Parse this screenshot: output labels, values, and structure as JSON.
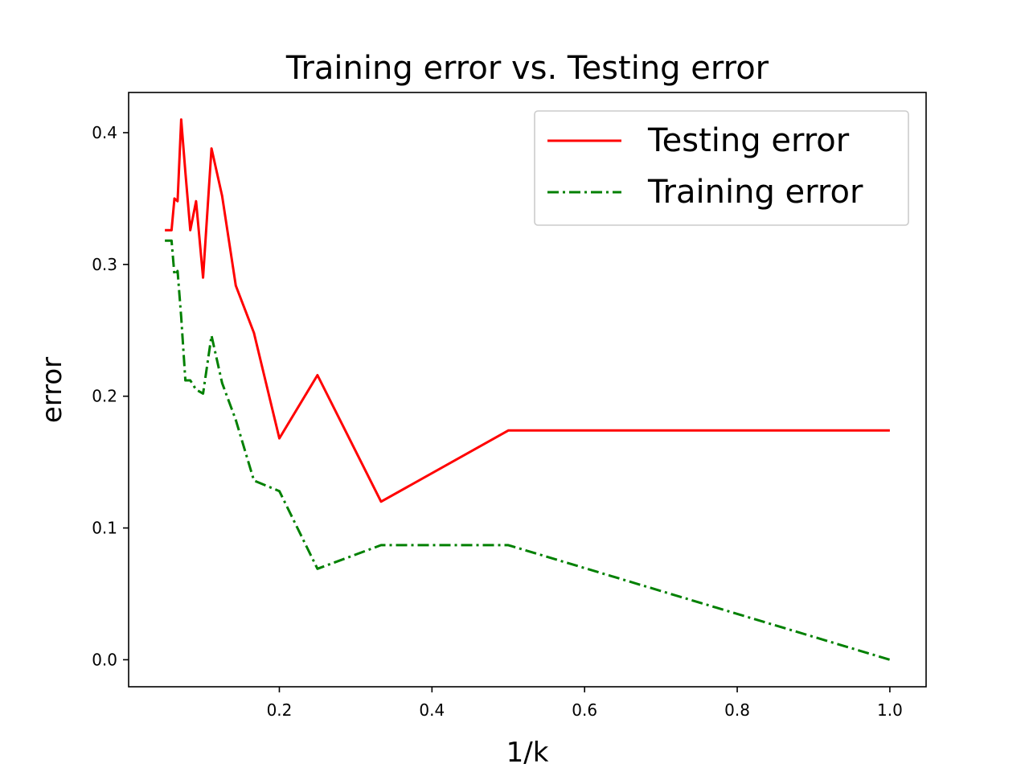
{
  "chart_data": {
    "type": "line",
    "title": "Training error vs. Testing error",
    "xlabel": "1/k",
    "ylabel": "error",
    "xlim": [
      0.0025,
      1.0475
    ],
    "ylim": [
      -0.0205,
      0.4305
    ],
    "xticks": [
      0.2,
      0.4,
      0.6,
      0.8,
      1.0
    ],
    "xtick_labels": [
      "0.2",
      "0.4",
      "0.6",
      "0.8",
      "1.0"
    ],
    "yticks": [
      0.0,
      0.1,
      0.2,
      0.3,
      0.4
    ],
    "ytick_labels": [
      "0.0",
      "0.1",
      "0.2",
      "0.3",
      "0.4"
    ],
    "grid": false,
    "legend_position": "upper right",
    "series": [
      {
        "name": "Testing error",
        "color": "#ff0000",
        "style": "solid",
        "x": [
          0.05,
          0.0526,
          0.0556,
          0.0588,
          0.0625,
          0.0667,
          0.0714,
          0.0769,
          0.0833,
          0.0909,
          0.1,
          0.1111,
          0.125,
          0.1429,
          0.1667,
          0.2,
          0.25,
          0.3333,
          0.5,
          1.0
        ],
        "y": [
          0.326,
          0.326,
          0.326,
          0.326,
          0.35,
          0.348,
          0.41,
          0.37,
          0.326,
          0.348,
          0.29,
          0.388,
          0.352,
          0.284,
          0.248,
          0.168,
          0.216,
          0.12,
          0.174,
          0.174
        ]
      },
      {
        "name": "Training error",
        "color": "#008000",
        "style": "dashdot",
        "x": [
          0.05,
          0.0526,
          0.0556,
          0.0588,
          0.0625,
          0.0667,
          0.0714,
          0.0769,
          0.0833,
          0.0909,
          0.1,
          0.1111,
          0.125,
          0.1429,
          0.1667,
          0.2,
          0.25,
          0.3333,
          0.5,
          1.0
        ],
        "y": [
          0.318,
          0.318,
          0.318,
          0.318,
          0.292,
          0.295,
          0.26,
          0.212,
          0.212,
          0.205,
          0.202,
          0.246,
          0.21,
          0.182,
          0.136,
          0.128,
          0.069,
          0.087,
          0.087,
          0.0
        ]
      }
    ]
  }
}
